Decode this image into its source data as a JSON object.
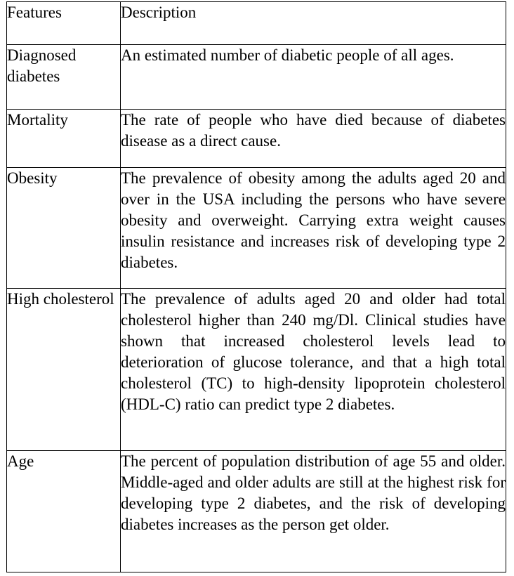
{
  "table": {
    "headers": {
      "features": "Features",
      "description": "Description"
    },
    "rows": [
      {
        "feature": "Diagnosed diabetes",
        "description": "An estimated number of diabetic people of all ages."
      },
      {
        "feature": "Mortality",
        "description": "The rate of people who have died because of diabetes disease as a direct cause."
      },
      {
        "feature": "Obesity",
        "description": "The prevalence of obesity among the adults aged 20 and over in the USA including the persons who have severe obesity and overweight. Carrying extra weight causes insulin resistance and increases risk of developing type 2 diabetes."
      },
      {
        "feature": "High cholesterol",
        "description": "The prevalence of adults aged 20 and older had total cholesterol higher than 240 mg/Dl. Clinical studies have shown that increased cholesterol levels lead to deterioration of glucose tolerance, and that a high total cholesterol (TC) to high-density lipoprotein cholesterol (HDL-C) ratio can predict type 2 diabetes."
      },
      {
        "feature": "Age",
        "description": "The percent of population distribution of age 55 and older. Middle-aged and older adults are still at the highest risk for developing type 2 diabetes, and the risk of developing diabetes increases as the person get older."
      }
    ]
  }
}
